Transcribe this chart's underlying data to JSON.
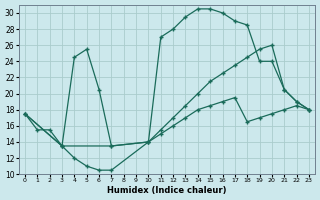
{
  "xlabel": "Humidex (Indice chaleur)",
  "bg_color": "#cce8ec",
  "grid_color": "#aacccc",
  "line_color": "#1a6b5a",
  "xlim": [
    -0.5,
    23.5
  ],
  "ylim": [
    10,
    31
  ],
  "xticks": [
    0,
    1,
    2,
    3,
    4,
    5,
    6,
    7,
    8,
    9,
    10,
    11,
    12,
    13,
    14,
    15,
    16,
    17,
    18,
    19,
    20,
    21,
    22,
    23
  ],
  "yticks": [
    10,
    12,
    14,
    16,
    18,
    20,
    22,
    24,
    26,
    28,
    30
  ],
  "line1_x": [
    0,
    1,
    2,
    3,
    4,
    5,
    6,
    7,
    10,
    11,
    12,
    13,
    14,
    15,
    16,
    17,
    18,
    19,
    20,
    21,
    22,
    23
  ],
  "line1_y": [
    17.5,
    15.5,
    15.5,
    13.5,
    12.0,
    11.0,
    10.5,
    10.5,
    14.0,
    15.5,
    17.0,
    18.5,
    20.0,
    21.5,
    22.5,
    23.5,
    24.5,
    25.5,
    26.0,
    20.5,
    19.0,
    18.0
  ],
  "line2_x": [
    0,
    3,
    4,
    5,
    6,
    7,
    10,
    11,
    12,
    13,
    14,
    15,
    16,
    17,
    18,
    19,
    20,
    21,
    22,
    23
  ],
  "line2_y": [
    17.5,
    13.5,
    24.5,
    25.5,
    20.5,
    13.5,
    14.0,
    27.0,
    28.0,
    29.5,
    30.5,
    30.5,
    30.0,
    29.0,
    28.5,
    24.0,
    24.0,
    20.5,
    19.0,
    18.0
  ],
  "line3_x": [
    0,
    3,
    7,
    10,
    11,
    12,
    13,
    14,
    15,
    16,
    17,
    18,
    19,
    20,
    21,
    22,
    23
  ],
  "line3_y": [
    17.5,
    13.5,
    13.5,
    14.0,
    15.0,
    16.0,
    17.0,
    18.0,
    18.5,
    19.0,
    19.5,
    16.5,
    17.0,
    17.5,
    18.0,
    18.5,
    18.0
  ]
}
